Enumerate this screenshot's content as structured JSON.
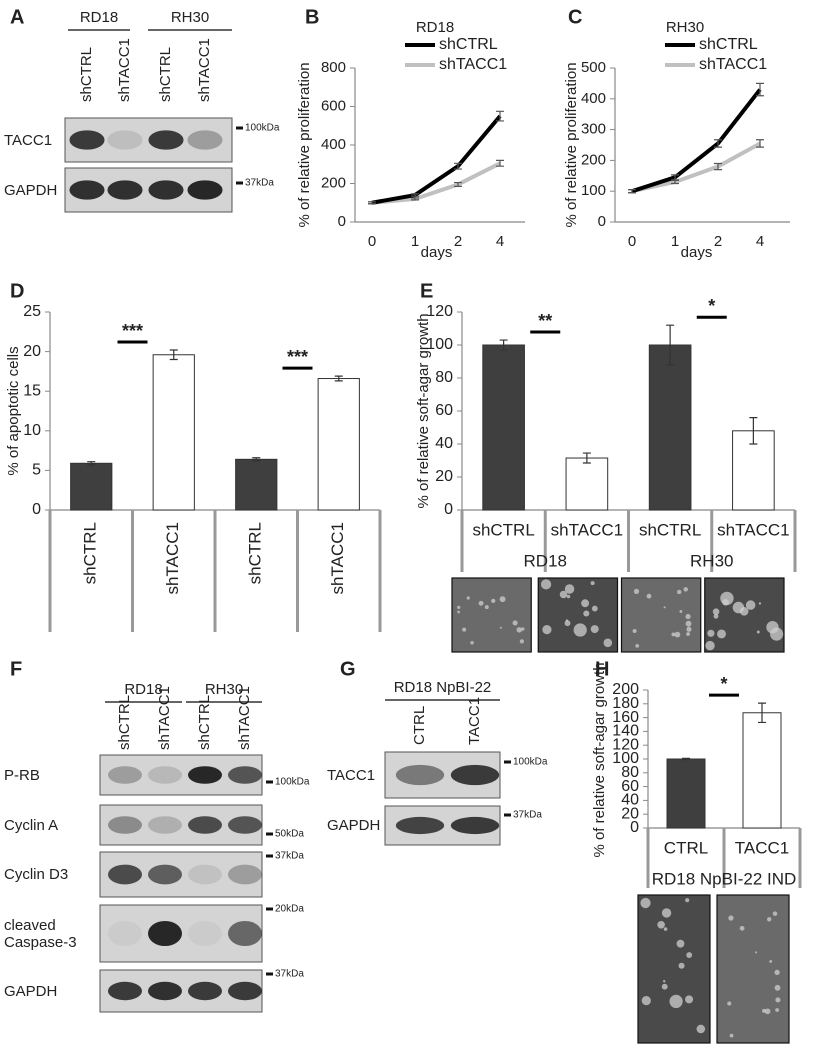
{
  "figure": {
    "panels": [
      "A",
      "B",
      "C",
      "D",
      "E",
      "F",
      "G",
      "H"
    ],
    "blots": [
      {
        "groups": [
          "RD18",
          "RH30"
        ],
        "lanes": [
          "shCTRL",
          "shTACC1",
          "shCTRL",
          "shTACC1"
        ],
        "rows": [
          "TACC1",
          "GAPDH"
        ],
        "markers": [
          "100kDa",
          "37kDa"
        ]
      },
      {
        "groups": [
          "RD18",
          "RH30"
        ],
        "lanes": [
          "shCTRL",
          "shTACC1",
          "shCTRL",
          "shTACC1"
        ],
        "rows": [
          "P-RB",
          "Cyclin A",
          "Cyclin D3",
          "cleaved Caspase-3",
          "GAPDH"
        ],
        "markers": [
          "100kDa",
          "50kDa",
          "37kDa",
          "20kDa",
          "37kDa"
        ]
      },
      {
        "groups": [
          "RD18 NpBI-22"
        ],
        "lanes": [
          "CTRL",
          "TACC1"
        ],
        "rows": [
          "TACC1",
          "GAPDH"
        ],
        "markers": [
          "100kDa",
          "37kDa"
        ]
      }
    ]
  },
  "chart_data": [
    {
      "type": "line",
      "title": "RD18",
      "categories": [
        "0",
        "1",
        "2",
        "4"
      ],
      "xlabel": "days",
      "ylabel": "% of relative proliferation",
      "ylim": [
        0,
        800
      ],
      "yticks": [
        0,
        200,
        400,
        600,
        800
      ],
      "series": [
        {
          "name": "shCTRL",
          "color": "#000000",
          "values": [
            100,
            140,
            290,
            550
          ],
          "errors": [
            5,
            6,
            15,
            25
          ]
        },
        {
          "name": "shTACC1",
          "color": "#c0c0c0",
          "values": [
            100,
            120,
            195,
            305
          ],
          "errors": [
            5,
            5,
            10,
            15
          ]
        }
      ]
    },
    {
      "type": "line",
      "title": "RH30",
      "categories": [
        "0",
        "1",
        "2",
        "4"
      ],
      "xlabel": "days",
      "ylabel": "% of relative proliferation",
      "ylim": [
        0,
        500
      ],
      "yticks": [
        0,
        100,
        200,
        300,
        400,
        500
      ],
      "series": [
        {
          "name": "shCTRL",
          "color": "#000000",
          "values": [
            100,
            145,
            255,
            430
          ],
          "errors": [
            5,
            8,
            12,
            20
          ]
        },
        {
          "name": "shTACC1",
          "color": "#c0c0c0",
          "values": [
            100,
            130,
            180,
            255
          ],
          "errors": [
            5,
            5,
            10,
            12
          ]
        }
      ]
    },
    {
      "type": "bar",
      "ylabel": "% of apoptotic cells",
      "categories": [
        "shCTRL",
        "shTACC1",
        "shCTRL",
        "shTACC1"
      ],
      "values": [
        5.9,
        19.6,
        6.4,
        16.6
      ],
      "errors": [
        0.2,
        0.6,
        0.2,
        0.3
      ],
      "colors": [
        "#3f3f3f",
        "#ffffff",
        "#3f3f3f",
        "#ffffff"
      ],
      "ylim": [
        0,
        25
      ],
      "yticks": [
        0,
        5,
        10,
        15,
        20,
        25
      ],
      "annotations": [
        "***",
        "***"
      ]
    },
    {
      "type": "bar",
      "ylabel": "% of relative soft-agar growth",
      "categories": [
        "shCTRL",
        "shTACC1",
        "shCTRL",
        "shTACC1"
      ],
      "groups": [
        "RD18",
        "RH30"
      ],
      "values": [
        100,
        31.5,
        100,
        48
      ],
      "errors": [
        3,
        3,
        12,
        8
      ],
      "colors": [
        "#3f3f3f",
        "#ffffff",
        "#3f3f3f",
        "#ffffff"
      ],
      "ylim": [
        0,
        120
      ],
      "yticks": [
        0,
        20,
        40,
        60,
        80,
        100,
        120
      ],
      "annotations": [
        "**",
        "*"
      ]
    },
    {
      "type": "bar",
      "ylabel": "% of relative soft-agar growth",
      "categories": [
        "CTRL",
        "TACC1"
      ],
      "groups": [
        "RD18 NpBI-22 IND"
      ],
      "values": [
        100,
        167
      ],
      "errors": [
        1,
        14
      ],
      "colors": [
        "#3f3f3f",
        "#ffffff"
      ],
      "ylim": [
        0,
        200
      ],
      "yticks": [
        0,
        20,
        40,
        60,
        80,
        100,
        120,
        140,
        160,
        180,
        200
      ],
      "annotations": [
        "*"
      ]
    }
  ]
}
